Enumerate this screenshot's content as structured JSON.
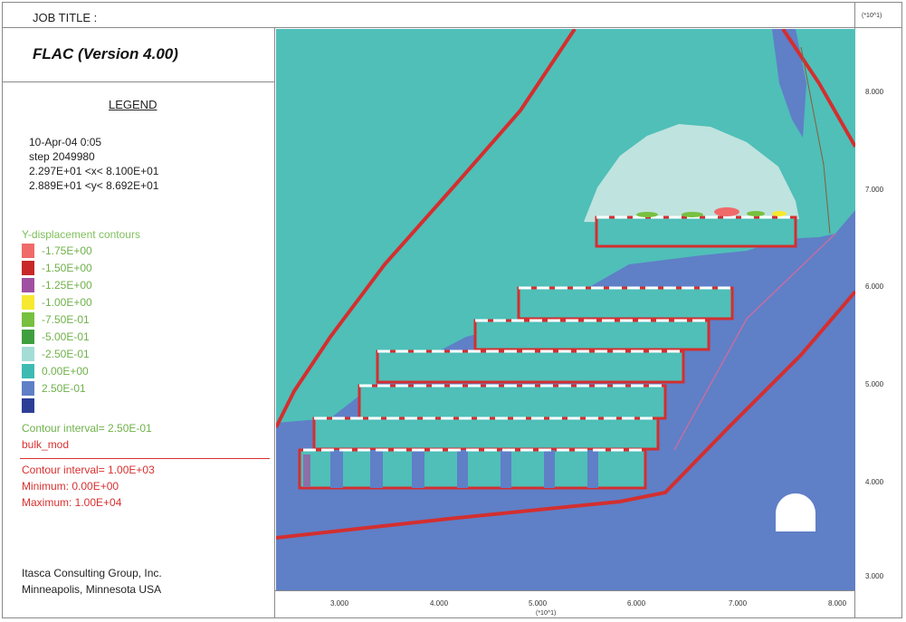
{
  "header": {
    "job_title": "JOB TITLE :"
  },
  "app": {
    "version": "FLAC (Version 4.00)"
  },
  "legend": {
    "heading": "LEGEND",
    "date_time": "10-Apr-04  0:05",
    "step": "step  2049980",
    "x_range": "2.297E+01 <x< 8.100E+01",
    "y_range": "2.889E+01 <y< 8.692E+01"
  },
  "contours": {
    "title": "Y-displacement contours",
    "items": [
      {
        "label": "-1.75E+00",
        "color": "#f06a6a"
      },
      {
        "label": "-1.50E+00",
        "color": "#c82828"
      },
      {
        "label": "-1.25E+00",
        "color": "#a050a0"
      },
      {
        "label": "-1.00E+00",
        "color": "#f7e830"
      },
      {
        "label": "-7.50E-01",
        "color": "#78c040"
      },
      {
        "label": "-5.00E-01",
        "color": "#3f9f3f"
      },
      {
        "label": "-2.50E-01",
        "color": "#a4ddd6"
      },
      {
        "label": "0.00E+00",
        "color": "#3dbbb2"
      },
      {
        "label": "2.50E-01",
        "color": "#5f7fc7"
      },
      {
        "label": "",
        "color": "#2c3f96"
      }
    ],
    "interval": "Contour interval=  2.50E-01"
  },
  "bulk_mod": {
    "label": "bulk_mod",
    "interval": "Contour interval=  1.00E+03",
    "minimum": "Minimum:  0.00E+00",
    "maximum": "Maximum:  1.00E+04"
  },
  "company": {
    "line1": "Itasca Consulting Group, Inc.",
    "line2": "Minneapolis, Minnesota  USA"
  },
  "axes": {
    "y_scale": "(*10^1)",
    "x_scale": "(*10^1)",
    "y_ticks": [
      "8.000",
      "7.000",
      "6.000",
      "5.000",
      "4.000",
      "3.000"
    ],
    "x_ticks": [
      "3.000",
      "4.000",
      "5.000",
      "6.000",
      "7.000",
      "8.000"
    ]
  },
  "colors": {
    "bg_teal": "#4fbfb8",
    "rock_blue": "#5f7fc7",
    "fault_red": "#d32f2f",
    "light_zone": "#bfe3de"
  }
}
